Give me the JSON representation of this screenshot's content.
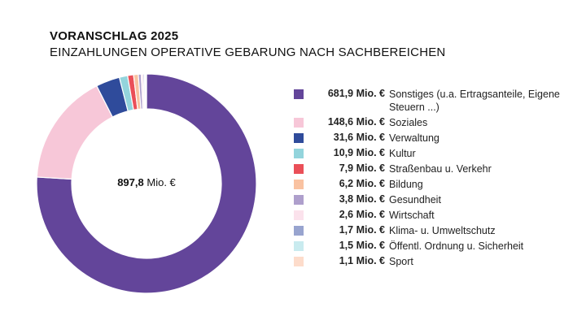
{
  "chart_data": {
    "type": "pie",
    "donut": true,
    "title": "VORANSCHLAG 2025",
    "subtitle": "EINZAHLUNGEN OPERATIVE GEBARUNG NACH SACHBEREICHEN",
    "center_label": {
      "value": "897,8",
      "unit": "Mio. €"
    },
    "unit": "Mio. €",
    "legend_position": "right",
    "slices": [
      {
        "label": "Sonstiges (u.a. Ertragsanteile, Eigene Steuern ...)",
        "value": 681.9,
        "display": "681,9",
        "color": "#63459a"
      },
      {
        "label": "Soziales",
        "value": 148.6,
        "display": "148,6",
        "color": "#f7c7d8"
      },
      {
        "label": "Verwaltung",
        "value": 31.6,
        "display": "31,6",
        "color": "#2f4b9b"
      },
      {
        "label": "Kultur",
        "value": 10.9,
        "display": "10,9",
        "color": "#93d4dc"
      },
      {
        "label": "Straßenbau u. Verkehr",
        "value": 7.9,
        "display": "7,9",
        "color": "#ea4f58"
      },
      {
        "label": "Bildung",
        "value": 6.2,
        "display": "6,2",
        "color": "#f9c2a1"
      },
      {
        "label": "Gesundheit",
        "value": 3.8,
        "display": "3,8",
        "color": "#ae9fcc"
      },
      {
        "label": "Wirtschaft",
        "value": 2.6,
        "display": "2,6",
        "color": "#fbe2ec"
      },
      {
        "label": "Klima- u. Umweltschutz",
        "value": 1.7,
        "display": "1,7",
        "color": "#98a4cf"
      },
      {
        "label": "Öffentl. Ordnung u. Sicherheit",
        "value": 1.5,
        "display": "1,5",
        "color": "#c9ebef"
      },
      {
        "label": "Sport",
        "value": 1.1,
        "display": "1,1",
        "color": "#fddccb"
      }
    ]
  }
}
